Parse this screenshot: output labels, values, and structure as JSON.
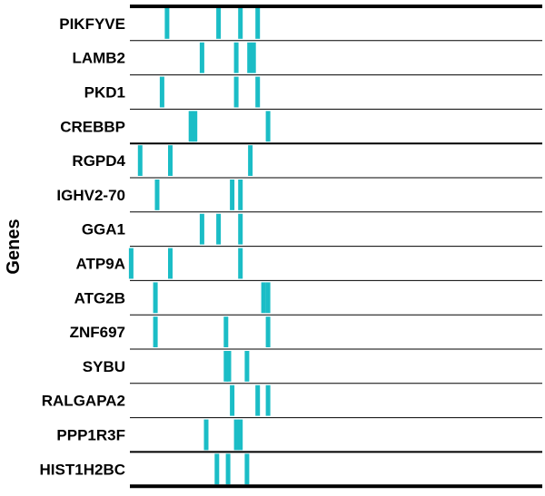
{
  "chart_data": {
    "type": "heatmap",
    "title": "",
    "xlabel": "",
    "ylabel": "Genes",
    "xlim": [
      0,
      100
    ],
    "grid": false,
    "legend": "none",
    "colors": {
      "mark": "#1bbdc6",
      "line": "#000000",
      "background": "#ffffff"
    },
    "groups": [
      {
        "genes": [
          {
            "name": "PIKFYVE",
            "positions": [
              9,
              21.5,
              26.8,
              31
            ]
          },
          {
            "name": "LAMB2",
            "positions": [
              17.5,
              25.8,
              29,
              30
            ]
          },
          {
            "name": "PKD1",
            "positions": [
              7.8,
              25.8,
              31
            ]
          },
          {
            "name": "CREBBP",
            "positions": [
              14.8,
              15.8,
              33.5
            ]
          }
        ]
      },
      {
        "genes": [
          {
            "name": "RGPD4",
            "positions": [
              2.5,
              9.8,
              29.2
            ]
          },
          {
            "name": "IGHV2-70",
            "positions": [
              6.6,
              24.8,
              26.8
            ]
          },
          {
            "name": "GGA1",
            "positions": [
              17.5,
              21.5,
              26.8
            ]
          },
          {
            "name": "ATP9A",
            "positions": [
              0.3,
              9.8,
              26.8
            ]
          },
          {
            "name": "ATG2B",
            "positions": [
              6.2,
              32.4,
              33.5
            ]
          },
          {
            "name": "ZNF697",
            "positions": [
              6.2,
              23.3,
              33.5
            ]
          },
          {
            "name": "SYBU",
            "positions": [
              23.3,
              24,
              28.4
            ]
          },
          {
            "name": "RALGAPA2",
            "positions": [
              24.8,
              31,
              33.5
            ]
          },
          {
            "name": "PPP1R3F",
            "positions": [
              18.5,
              25.8,
              26.8
            ]
          }
        ]
      },
      {
        "genes": [
          {
            "name": "HIST1H2BC",
            "positions": [
              21.1,
              23.8,
              28.4
            ]
          }
        ]
      }
    ]
  }
}
